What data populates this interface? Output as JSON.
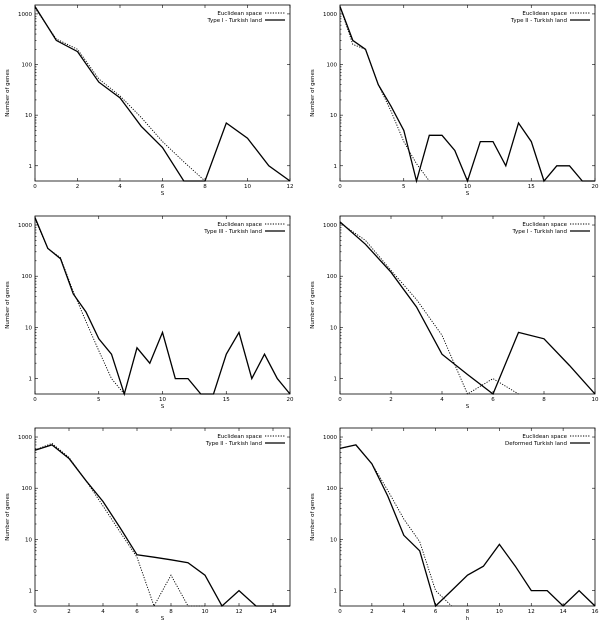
{
  "chart_data": [
    {
      "type": "line",
      "log_y": true,
      "grid": false,
      "legend": "top-right",
      "xlim": [
        0,
        12
      ],
      "ylim": [
        0.5,
        1500
      ],
      "xticks": [
        0,
        2,
        4,
        6,
        8,
        10,
        12
      ],
      "xtick_labels": [
        "0",
        "2",
        "4",
        "6",
        "8",
        "10",
        "12"
      ],
      "yticks": [
        1,
        10,
        100,
        1000
      ],
      "ytick_labels": [
        "1",
        "10",
        "100",
        "1000"
      ],
      "xlabel": "S",
      "ylabel": "Number of genes",
      "series": [
        {
          "name": "Euclidean space",
          "style": "dotted",
          "x": [
            0,
            1,
            2,
            3,
            4,
            5,
            6,
            7,
            8
          ],
          "y": [
            1300,
            320,
            200,
            52,
            24,
            9,
            3,
            1.2,
            0.5
          ]
        },
        {
          "name": "Type I - Turkish land",
          "style": "solid",
          "x": [
            0,
            1,
            2,
            3,
            4,
            5,
            6,
            7,
            8,
            9,
            10,
            11,
            12
          ],
          "y": [
            1400,
            300,
            180,
            45,
            22,
            6,
            2.3,
            0.5,
            0.5,
            7,
            3.5,
            1,
            0.5
          ]
        }
      ]
    },
    {
      "type": "line",
      "log_y": true,
      "grid": false,
      "legend": "top-right",
      "xlim": [
        0,
        20
      ],
      "ylim": [
        0.5,
        1500
      ],
      "xticks": [
        0,
        5,
        10,
        15,
        20
      ],
      "xtick_labels": [
        "0",
        "5",
        "10",
        "15",
        "20"
      ],
      "yticks": [
        1,
        10,
        100,
        1000
      ],
      "ytick_labels": [
        "1",
        "10",
        "100",
        "1000"
      ],
      "xlabel": "S",
      "ylabel": "Number of genes",
      "series": [
        {
          "name": "Euclidean space",
          "style": "dotted",
          "x": [
            0,
            1,
            2,
            3,
            4,
            5,
            6,
            7
          ],
          "y": [
            1400,
            250,
            200,
            40,
            12,
            3,
            1.1,
            0.5
          ]
        },
        {
          "name": "Type II - Turkish land",
          "style": "solid",
          "x": [
            0,
            1,
            2,
            3,
            4,
            5,
            6,
            7,
            8,
            9,
            10,
            11,
            12,
            13,
            14,
            15,
            16,
            17,
            18,
            19,
            20
          ],
          "y": [
            1400,
            300,
            200,
            40,
            15,
            5,
            0.5,
            4,
            4,
            2,
            0.5,
            3,
            3,
            1,
            7,
            3,
            0.5,
            1,
            1,
            0.5,
            0.5
          ]
        }
      ]
    },
    {
      "type": "line",
      "log_y": true,
      "grid": false,
      "legend": "top-right",
      "xlim": [
        0,
        20
      ],
      "ylim": [
        0.5,
        1500
      ],
      "xticks": [
        0,
        5,
        10,
        15,
        20
      ],
      "xtick_labels": [
        "0",
        "5",
        "10",
        "15",
        "20"
      ],
      "yticks": [
        1,
        10,
        100,
        1000
      ],
      "ytick_labels": [
        "1",
        "10",
        "100",
        "1000"
      ],
      "xlabel": "S",
      "ylabel": "Number of genes",
      "series": [
        {
          "name": "Euclidean space",
          "style": "dotted",
          "x": [
            0,
            1,
            2,
            3,
            4,
            5,
            6,
            7
          ],
          "y": [
            1300,
            350,
            230,
            50,
            13,
            3.5,
            1,
            0.5
          ]
        },
        {
          "name": "Type III - Turkish land",
          "style": "solid",
          "x": [
            0,
            1,
            2,
            3,
            4,
            5,
            6,
            7,
            8,
            9,
            10,
            11,
            12,
            13,
            14,
            15,
            16,
            17,
            18,
            19,
            20
          ],
          "y": [
            1400,
            350,
            220,
            45,
            20,
            6,
            3,
            0.5,
            4,
            2,
            8,
            1,
            1,
            0.5,
            0.5,
            3,
            8,
            1,
            3,
            1,
            0.5
          ]
        }
      ]
    },
    {
      "type": "line",
      "log_y": true,
      "grid": false,
      "legend": "top-right",
      "xlim": [
        0,
        10
      ],
      "ylim": [
        0.5,
        1500
      ],
      "xticks": [
        0,
        2,
        4,
        6,
        8,
        10
      ],
      "xtick_labels": [
        "0",
        "2",
        "4",
        "6",
        "8",
        "10"
      ],
      "yticks": [
        1,
        10,
        100,
        1000
      ],
      "ytick_labels": [
        "1",
        "10",
        "100",
        "1000"
      ],
      "xlabel": "S",
      "ylabel": "Number of genes",
      "series": [
        {
          "name": "Euclidean space",
          "style": "dotted",
          "x": [
            0,
            1,
            2,
            3,
            4,
            5,
            6,
            7
          ],
          "y": [
            1100,
            500,
            130,
            35,
            7,
            0.5,
            1,
            0.5
          ]
        },
        {
          "name": "Type I - Turkish land",
          "style": "solid",
          "x": [
            0,
            1,
            2,
            3,
            4,
            5,
            6,
            7,
            8,
            9,
            10
          ],
          "y": [
            1150,
            420,
            120,
            25,
            3,
            1.2,
            0.5,
            8,
            6,
            1.8,
            0.5
          ]
        }
      ]
    },
    {
      "type": "line",
      "log_y": true,
      "grid": false,
      "legend": "top-right",
      "xlim": [
        0,
        15
      ],
      "ylim": [
        0.5,
        1500
      ],
      "xticks": [
        0,
        2,
        4,
        6,
        8,
        10,
        12,
        14
      ],
      "xtick_labels": [
        "0",
        "2",
        "4",
        "6",
        "8",
        "10",
        "12",
        "14"
      ],
      "yticks": [
        1,
        10,
        100,
        1000
      ],
      "ytick_labels": [
        "1",
        "10",
        "100",
        "1000"
      ],
      "xlabel": "S",
      "ylabel": "Number of genes",
      "series": [
        {
          "name": "Euclidean space",
          "style": "dotted",
          "x": [
            0,
            1,
            2,
            3,
            4,
            5,
            6,
            7,
            8,
            9,
            10
          ],
          "y": [
            560,
            750,
            400,
            140,
            45,
            14,
            4.5,
            0.5,
            2,
            0.5,
            0.5
          ]
        },
        {
          "name": "Type II - Turkish land",
          "style": "solid",
          "x": [
            0,
            1,
            2,
            3,
            4,
            5,
            6,
            7,
            8,
            9,
            10,
            11,
            12,
            13,
            14,
            15
          ],
          "y": [
            550,
            700,
            380,
            140,
            55,
            17,
            5,
            4.5,
            4,
            3.5,
            2,
            0.5,
            1,
            0.5,
            0.5,
            0.5
          ]
        }
      ]
    },
    {
      "type": "line",
      "log_y": true,
      "grid": false,
      "legend": "top-right",
      "xlim": [
        0,
        16
      ],
      "ylim": [
        0.5,
        1500
      ],
      "xticks": [
        0,
        2,
        4,
        6,
        8,
        10,
        12,
        14,
        16
      ],
      "xtick_labels": [
        "0",
        "2",
        "4",
        "6",
        "8",
        "10",
        "12",
        "14",
        "16"
      ],
      "yticks": [
        1,
        10,
        100,
        1000
      ],
      "ytick_labels": [
        "1",
        "10",
        "100",
        "1000"
      ],
      "xlabel": "h",
      "ylabel": "Number of genes",
      "series": [
        {
          "name": "Euclidean space",
          "style": "dotted",
          "x": [
            0,
            1,
            2,
            3,
            4,
            5,
            6,
            7
          ],
          "y": [
            600,
            700,
            300,
            90,
            25,
            9,
            1,
            0.5
          ]
        },
        {
          "name": "Deformed Turkish land",
          "style": "solid",
          "x": [
            0,
            1,
            2,
            3,
            4,
            5,
            6,
            7,
            8,
            9,
            10,
            11,
            12,
            13,
            14,
            15,
            16
          ],
          "y": [
            600,
            700,
            300,
            70,
            12,
            6,
            0.5,
            1,
            2,
            3,
            8,
            3,
            1,
            1,
            0.5,
            1,
            0.5
          ]
        }
      ]
    }
  ]
}
